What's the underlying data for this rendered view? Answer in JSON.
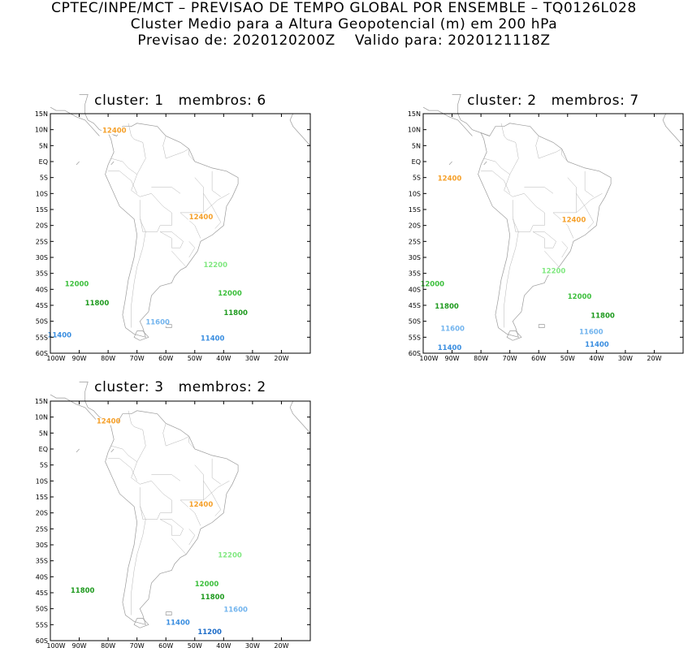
{
  "header": {
    "line1": "CPTEC/INPE/MCT – PREVISAO DE TEMPO GLOBAL POR ENSEMBLE – TQ0126L028",
    "line2": "Cluster Medio para a Altura Geopotencial (m) em 200 hPa",
    "line3": "Previsao de: 2020120200Z    Valido para: 2020121118Z"
  },
  "axes": {
    "lat_ticks": [
      "15N",
      "10N",
      "5N",
      "EQ",
      "5S",
      "10S",
      "15S",
      "20S",
      "25S",
      "30S",
      "35S",
      "40S",
      "45S",
      "50S",
      "55S",
      "60S"
    ],
    "lon_ticks": [
      "100W",
      "90W",
      "80W",
      "70W",
      "60W",
      "50W",
      "40W",
      "30W",
      "20W"
    ]
  },
  "colors": {
    "c12400": "#f5a02a",
    "c12200": "#80e880",
    "c12000": "#3cbf3c",
    "c11800": "#1e9a1e",
    "c11600": "#72b4ee",
    "c11400": "#3a8ee0",
    "c11200": "#1c6cc8",
    "land": "#9a9a9a"
  },
  "panels": [
    {
      "title": "cluster: 1   membros: 6",
      "labels": [
        {
          "text": "12400",
          "color": "c12400",
          "lon": -82,
          "lat": 9
        },
        {
          "text": "12400",
          "color": "c12400",
          "lon": -52,
          "lat": -18
        },
        {
          "text": "12200",
          "color": "c12200",
          "lon": -47,
          "lat": -33
        },
        {
          "text": "12000",
          "color": "c12000",
          "lon": -95,
          "lat": -39
        },
        {
          "text": "12000",
          "color": "c12000",
          "lon": -42,
          "lat": -42
        },
        {
          "text": "11800",
          "color": "c11800",
          "lon": -88,
          "lat": -45
        },
        {
          "text": "11800",
          "color": "c11800",
          "lon": -40,
          "lat": -48
        },
        {
          "text": "11600",
          "color": "c11600",
          "lon": -67,
          "lat": -51
        },
        {
          "text": "11400",
          "color": "c11400",
          "lon": -101,
          "lat": -55
        },
        {
          "text": "11400",
          "color": "c11400",
          "lon": -48,
          "lat": -56
        }
      ]
    },
    {
      "title": "cluster: 2   membros: 7",
      "labels": [
        {
          "text": "12400",
          "color": "c12400",
          "lon": -95,
          "lat": -6
        },
        {
          "text": "12400",
          "color": "c12400",
          "lon": -52,
          "lat": -19
        },
        {
          "text": "12200",
          "color": "c12200",
          "lon": -59,
          "lat": -35
        },
        {
          "text": "12000",
          "color": "c12000",
          "lon": -101,
          "lat": -39
        },
        {
          "text": "12000",
          "color": "c12000",
          "lon": -50,
          "lat": -43
        },
        {
          "text": "11800",
          "color": "c11800",
          "lon": -96,
          "lat": -46
        },
        {
          "text": "11800",
          "color": "c11800",
          "lon": -42,
          "lat": -49
        },
        {
          "text": "11600",
          "color": "c11600",
          "lon": -94,
          "lat": -53
        },
        {
          "text": "11600",
          "color": "c11600",
          "lon": -46,
          "lat": -54
        },
        {
          "text": "11400",
          "color": "c11400",
          "lon": -95,
          "lat": -59
        },
        {
          "text": "11400",
          "color": "c11400",
          "lon": -44,
          "lat": -58
        }
      ]
    },
    {
      "title": "cluster: 3   membros: 2",
      "labels": [
        {
          "text": "12400",
          "color": "c12400",
          "lon": -84,
          "lat": 8
        },
        {
          "text": "12400",
          "color": "c12400",
          "lon": -52,
          "lat": -18
        },
        {
          "text": "12200",
          "color": "c12200",
          "lon": -42,
          "lat": -34
        },
        {
          "text": "12000",
          "color": "c12000",
          "lon": -50,
          "lat": -43
        },
        {
          "text": "11800",
          "color": "c11800",
          "lon": -93,
          "lat": -45
        },
        {
          "text": "11800",
          "color": "c11800",
          "lon": -48,
          "lat": -47
        },
        {
          "text": "11600",
          "color": "c11600",
          "lon": -40,
          "lat": -51
        },
        {
          "text": "11400",
          "color": "c11400",
          "lon": -60,
          "lat": -55
        },
        {
          "text": "11200",
          "color": "c11200",
          "lon": -49,
          "lat": -58
        }
      ]
    }
  ]
}
